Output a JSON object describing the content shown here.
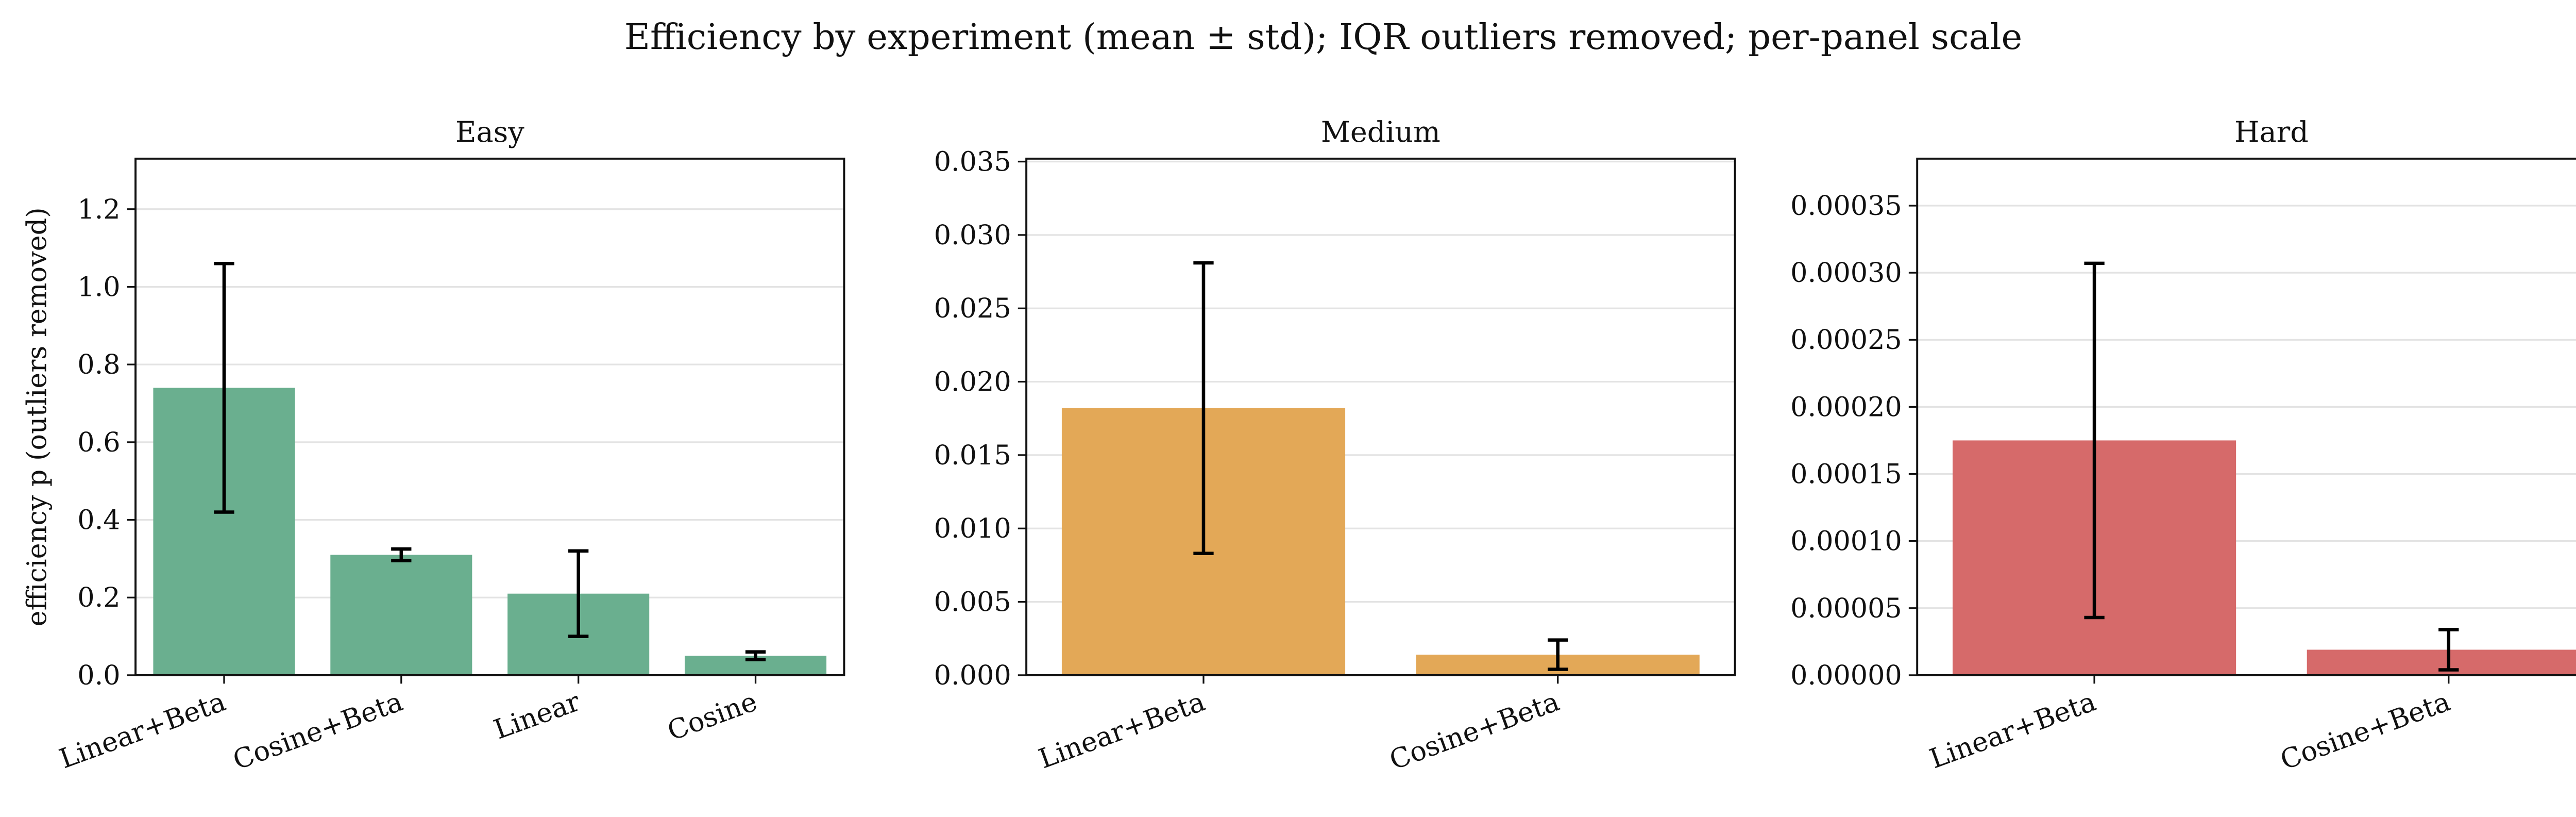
{
  "title": "Efficiency by experiment (mean ± std); IQR outliers removed; per-panel scale",
  "chart_data": [
    {
      "type": "bar",
      "title": "Easy",
      "ylabel": "efficiency p (outliers removed)",
      "categories": [
        "Linear+Beta",
        "Cosine+Beta",
        "Linear",
        "Cosine"
      ],
      "values": [
        0.74,
        0.31,
        0.21,
        0.05
      ],
      "errors": [
        0.32,
        0.015,
        0.11,
        0.01
      ],
      "color": "#6aaf8f",
      "ylim": [
        0,
        1.33
      ],
      "yticks": [
        {
          "value": 0,
          "label": "0.0"
        },
        {
          "value": 0.2,
          "label": "0.2"
        },
        {
          "value": 0.4,
          "label": "0.4"
        },
        {
          "value": 0.6,
          "label": "0.6"
        },
        {
          "value": 0.8,
          "label": "0.8"
        },
        {
          "value": 1,
          "label": "1.0"
        },
        {
          "value": 1.2,
          "label": "1.2"
        }
      ],
      "grid": true
    },
    {
      "type": "bar",
      "title": "Medium",
      "categories": [
        "Linear+Beta",
        "Cosine+Beta"
      ],
      "values": [
        0.0182,
        0.0014
      ],
      "errors": [
        0.0099,
        0.001
      ],
      "color": "#e3a857",
      "ylim": [
        0,
        0.0352
      ],
      "yticks": [
        {
          "value": 0,
          "label": "0.000"
        },
        {
          "value": 0.005,
          "label": "0.005"
        },
        {
          "value": 0.01,
          "label": "0.010"
        },
        {
          "value": 0.015,
          "label": "0.015"
        },
        {
          "value": 0.02,
          "label": "0.020"
        },
        {
          "value": 0.025,
          "label": "0.025"
        },
        {
          "value": 0.03,
          "label": "0.030"
        },
        {
          "value": 0.035,
          "label": "0.035"
        }
      ],
      "grid": true
    },
    {
      "type": "bar",
      "title": "Hard",
      "categories": [
        "Linear+Beta",
        "Cosine+Beta"
      ],
      "values": [
        0.000175,
        1.9e-05
      ],
      "errors": [
        0.000132,
        1.5e-05
      ],
      "color": "#d66a6a",
      "ylim": [
        0,
        0.000385
      ],
      "yticks": [
        {
          "value": 0,
          "label": "0.00000"
        },
        {
          "value": 5e-05,
          "label": "0.00005"
        },
        {
          "value": 0.0001,
          "label": "0.00010"
        },
        {
          "value": 0.00015,
          "label": "0.00015"
        },
        {
          "value": 0.0002,
          "label": "0.00020"
        },
        {
          "value": 0.00025,
          "label": "0.00025"
        },
        {
          "value": 0.0003,
          "label": "0.00030"
        },
        {
          "value": 0.00035,
          "label": "0.00035"
        }
      ],
      "grid": true
    }
  ]
}
